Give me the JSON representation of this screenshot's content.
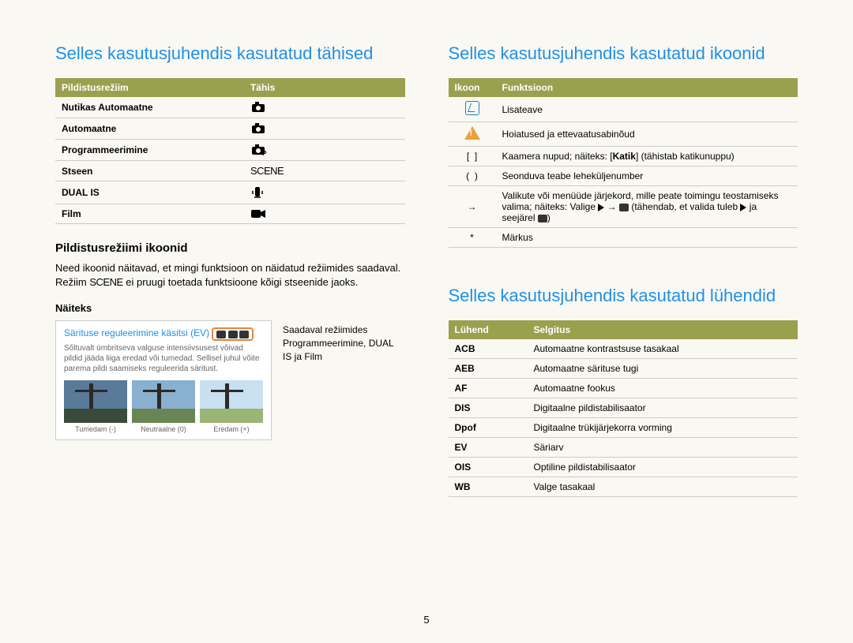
{
  "left": {
    "title": "Selles kasutusjuhendis kasutatud tähised",
    "table1": {
      "headers": [
        "Pildistusrežiim",
        "Tähis"
      ],
      "rows": [
        {
          "mode": "Nutikas Automaatne",
          "icon": "smart-camera"
        },
        {
          "mode": "Automaatne",
          "icon": "camera"
        },
        {
          "mode": "Programmeerimine",
          "icon": "camera-p"
        },
        {
          "mode": "Stseen",
          "icon": "scene"
        },
        {
          "mode": "DUAL IS",
          "icon": "dual-is"
        },
        {
          "mode": "Film",
          "icon": "film"
        }
      ]
    },
    "sub1": "Pildistusrežiimi ikoonid",
    "p1a": "Need ikoonid näitavad, et mingi funktsioon on näidatud režiimides saadaval. Režiim ",
    "p1b": " ei pruugi toetada funktsioone kõigi stseenide jaoks.",
    "sub2": "Näiteks",
    "example": {
      "title": "Särituse reguleerimine käsitsi (EV)",
      "desc": "Sõltuvalt ümbritseva valguse intensiivsusest võivad pildid jääda liiga eredad või tumedad. Sellisel juhul võite parema pildi saamiseks reguleerida säritust.",
      "thumbs": [
        {
          "label": "Tumedam (-)",
          "sky": "#5a7a9a",
          "ground": "#3a4a3a"
        },
        {
          "label": "Neutraalne (0)",
          "sky": "#8ab0d0",
          "ground": "#6a8555"
        },
        {
          "label": "Eredam (+)",
          "sky": "#c8e0f0",
          "ground": "#9ab575"
        }
      ]
    },
    "side_text": "Saadaval režiimides Programmeerimine, DUAL IS ja Film"
  },
  "right": {
    "title1": "Selles kasutusjuhendis kasutatud ikoonid",
    "table2": {
      "headers": [
        "Ikoon",
        "Funktsioon"
      ],
      "rows": [
        {
          "icon": "note",
          "text": "Lisateave"
        },
        {
          "icon": "warn",
          "text": "Hoiatused ja ettevaatusabinõud"
        },
        {
          "icon": "brackets",
          "text_pre": "Kaamera nupud; näiteks: [",
          "bold": "Katik",
          "text_post": "] (tähistab katikunuppu)"
        },
        {
          "icon": "parens",
          "text": "Seonduva teabe leheküljenumber"
        },
        {
          "icon": "arrow",
          "text_pre": "Valikute või menüüde järjekord, mille peate toimingu teostamiseks valima; näiteks: Valige ",
          "text_mid": " → ",
          "text_post": " (tähendab, et valida tuleb ",
          "text_end": " ja seejärel ",
          "text_close": ")"
        },
        {
          "icon": "star",
          "text": "Märkus"
        }
      ]
    },
    "title2": "Selles kasutusjuhendis kasutatud lühendid",
    "table3": {
      "headers": [
        "Lühend",
        "Selgitus"
      ],
      "rows": [
        {
          "abbr": "ACB",
          "def": "Automaatne kontrastsuse tasakaal"
        },
        {
          "abbr": "AEB",
          "def": "Automaatne särituse tugi"
        },
        {
          "abbr": "AF",
          "def": "Automaatne fookus"
        },
        {
          "abbr": "DIS",
          "def": "Digitaalne pildistabilisaator"
        },
        {
          "abbr": "Dpof",
          "def": "Digitaalne trükijärjekorra vorming"
        },
        {
          "abbr": "EV",
          "def": "Säriarv"
        },
        {
          "abbr": "OIS",
          "def": "Optiline pildistabilisaator"
        },
        {
          "abbr": "WB",
          "def": "Valge tasakaal"
        }
      ]
    }
  },
  "page_number": "5",
  "colors": {
    "heading": "#1e90e8",
    "table_header_bg": "#9ba04e",
    "table_header_fg": "#ffffff",
    "border": "#cccccc",
    "background": "#faf8f2",
    "orange": "#e8833a"
  }
}
